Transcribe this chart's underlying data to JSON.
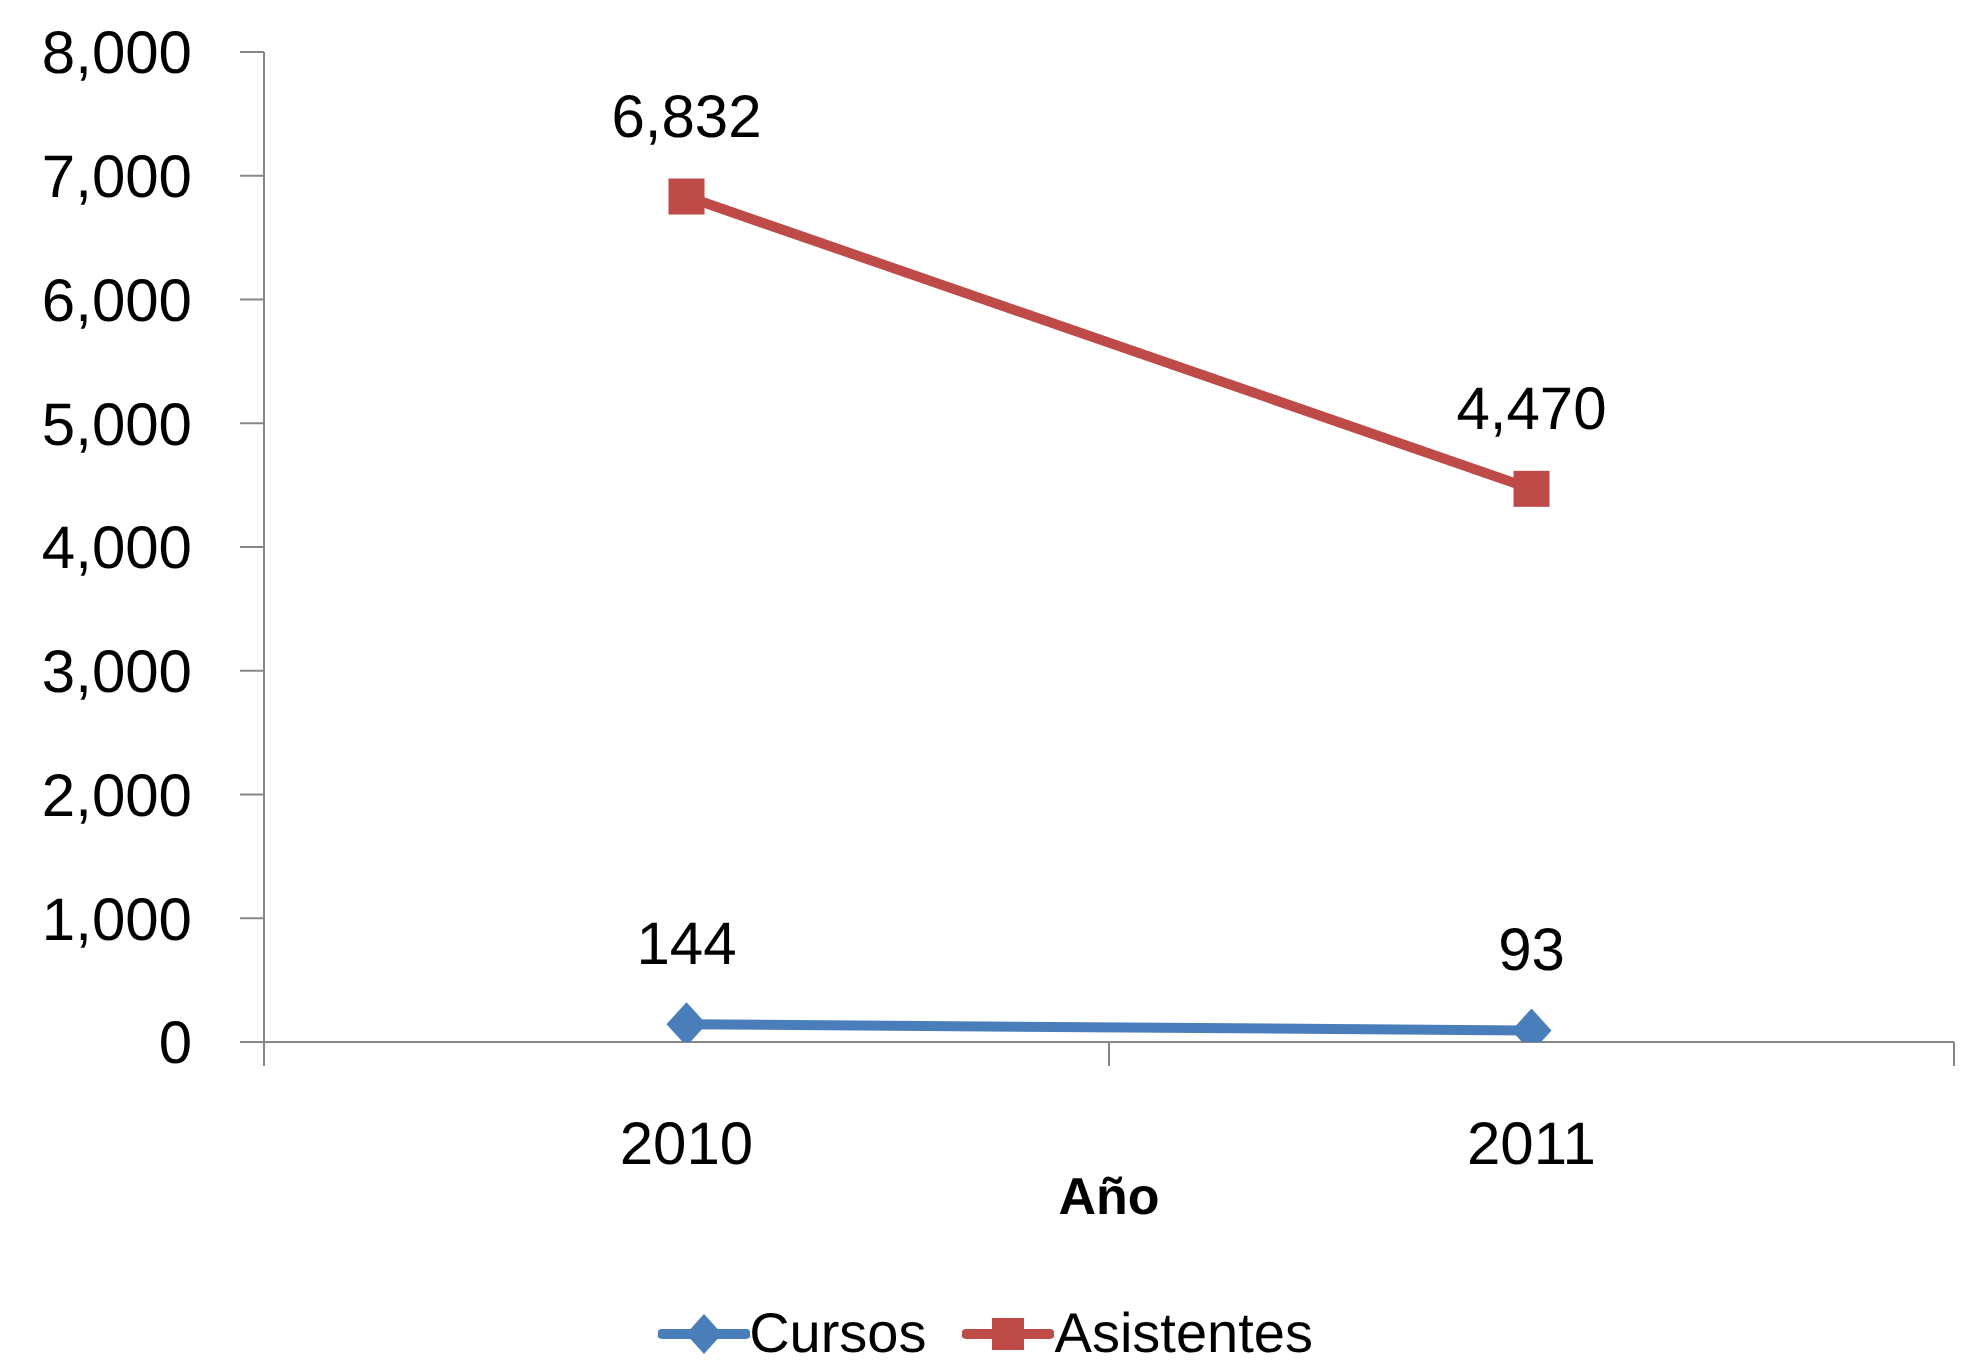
{
  "chart_data": {
    "type": "line",
    "xlabel": "Año",
    "categories": [
      "2010",
      "2011"
    ],
    "series": [
      {
        "name": "Cursos",
        "color": "#4a7ebb",
        "marker": "diamond",
        "values": [
          144,
          93
        ],
        "value_labels": [
          "144",
          "93"
        ]
      },
      {
        "name": "Asistentes",
        "color": "#be4b48",
        "marker": "square",
        "values": [
          6832,
          4470
        ],
        "value_labels": [
          "6,832",
          "4,470"
        ]
      }
    ],
    "ylim": [
      0,
      8000
    ],
    "yticks": [
      0,
      {
        "value": 1000,
        "label": "1,000"
      },
      {
        "value": 2000,
        "label": "2,000"
      },
      {
        "value": 3000,
        "label": "3,000"
      },
      {
        "value": 4000,
        "label": "4,000"
      },
      {
        "value": 5000,
        "label": "5,000"
      },
      {
        "value": 6000,
        "label": "6,000"
      },
      {
        "value": 7000,
        "label": "7,000"
      },
      {
        "value": 8000,
        "label": "8,000"
      }
    ],
    "grid": false,
    "legend": "bottom",
    "line_style": "solid"
  }
}
